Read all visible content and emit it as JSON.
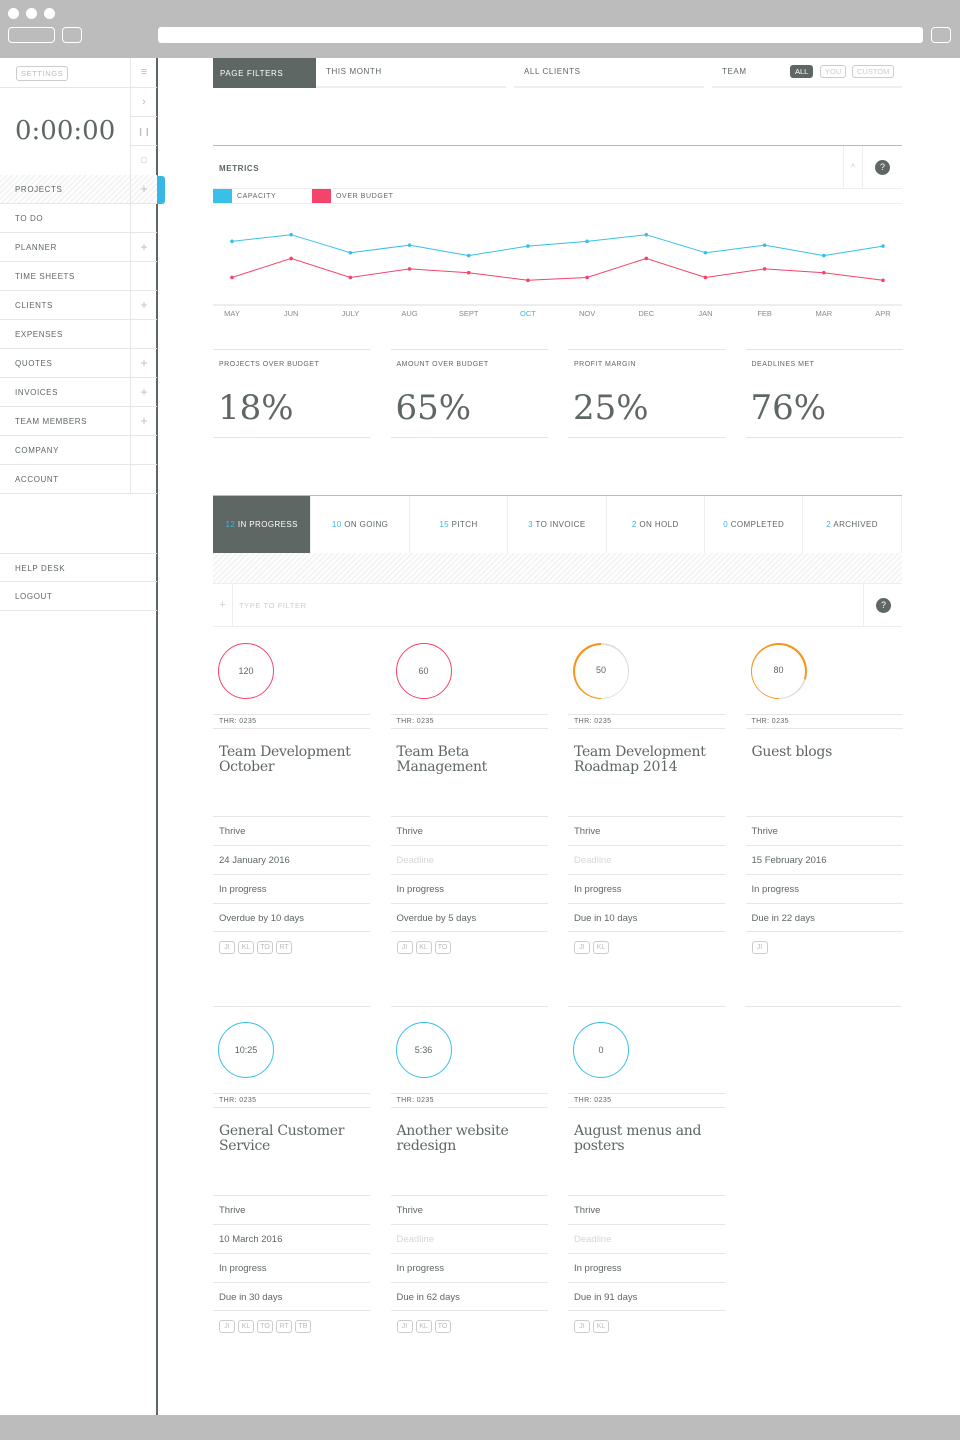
{
  "sidebar": {
    "settings": "SETTINGS",
    "timer": "0:00:00",
    "items": [
      {
        "label": "PROJECTS",
        "plus": true,
        "active": true
      },
      {
        "label": "TO DO",
        "plus": false
      },
      {
        "label": "PLANNER",
        "plus": true
      },
      {
        "label": "TIME SHEETS",
        "plus": false
      },
      {
        "label": "CLIENTS",
        "plus": true
      },
      {
        "label": "EXPENSES",
        "plus": false
      },
      {
        "label": "QUOTES",
        "plus": true
      },
      {
        "label": "INVOICES",
        "plus": true
      },
      {
        "label": "TEAM MEMBERS",
        "plus": true
      },
      {
        "label": "COMPANY",
        "plus": false
      },
      {
        "label": "ACCOUNT",
        "plus": false
      }
    ],
    "bottom_items": [
      {
        "label": "HELP DESK"
      },
      {
        "label": "LOGOUT"
      }
    ]
  },
  "filters": {
    "page_filters": "PAGE FILTERS",
    "period": "THIS MONTH",
    "clients": "ALL CLIENTS",
    "team": "TEAM",
    "team_options": [
      "ALL",
      "YOU",
      "CUSTOM"
    ],
    "team_selected": "ALL"
  },
  "metrics": {
    "title": "METRICS",
    "help": "?"
  },
  "chart_data": {
    "type": "line",
    "categories": [
      "MAY",
      "JUN",
      "JULY",
      "AUG",
      "SEPT",
      "OCT",
      "NOV",
      "DEC",
      "JAN",
      "FEB",
      "MAR",
      "APR"
    ],
    "highlight_category": "OCT",
    "ylim": [
      0,
      100
    ],
    "series": [
      {
        "name": "CAPACITY",
        "color": "#38c0e8",
        "values": [
          67,
          74,
          55,
          63,
          52,
          62,
          67,
          74,
          55,
          63,
          52,
          62
        ]
      },
      {
        "name": "OVER BUDGET",
        "color": "#f5436a",
        "values": [
          29,
          49,
          29,
          38,
          34,
          26,
          29,
          49,
          29,
          38,
          34,
          26
        ]
      }
    ]
  },
  "kpis": [
    {
      "label": "PROJECTS OVER BUDGET",
      "value": "18%"
    },
    {
      "label": "AMOUNT OVER BUDGET",
      "value": "65%"
    },
    {
      "label": "PROFIT MARGIN",
      "value": "25%"
    },
    {
      "label": "DEADLINES MET",
      "value": "76%"
    }
  ],
  "tabs": [
    {
      "count": "12",
      "label": "IN PROGRESS"
    },
    {
      "count": "10",
      "label": "ON GOING"
    },
    {
      "count": "15",
      "label": "PITCH"
    },
    {
      "count": "3",
      "label": "TO INVOICE"
    },
    {
      "count": "2",
      "label": "ON HOLD"
    },
    {
      "count": "0",
      "label": "COMPLETED"
    },
    {
      "count": "2",
      "label": "ARCHIVED"
    }
  ],
  "filter": {
    "placeholder": "TYPE TO FILTER",
    "help": "?"
  },
  "colors": {
    "red": "#f5436a",
    "orange": "#f7941d",
    "blue": "#38c0e8",
    "dark": "#5e6763"
  },
  "projects": [
    {
      "ring": "120",
      "ring_color": "red",
      "fill": 1,
      "code": "THR: 0235",
      "title": "Team Development October",
      "client": "Thrive",
      "deadline": "24 January 2016",
      "status": "In progress",
      "due": "Overdue by 10 days",
      "team": [
        "JI",
        "KL",
        "TO",
        "RT"
      ]
    },
    {
      "ring": "60",
      "ring_color": "red",
      "fill": 1,
      "code": "THR: 0235",
      "title": "Team Beta Management",
      "client": "Thrive",
      "deadline": "Deadline",
      "deadline_placeholder": true,
      "status": "In progress",
      "due": "Overdue by 5 days",
      "team": [
        "JI",
        "KL",
        "TO"
      ]
    },
    {
      "ring": "50",
      "ring_color": "orange",
      "fill": 0.5,
      "code": "THR: 0235",
      "title": "Team Development Roadmap 2014",
      "client": "Thrive",
      "deadline": "Deadline",
      "deadline_placeholder": true,
      "status": "In progress",
      "due": "Due in 10 days",
      "team": [
        "JI",
        "KL"
      ]
    },
    {
      "ring": "80",
      "ring_color": "orange",
      "fill": 0.8,
      "code": "THR: 0235",
      "title": "Guest blogs",
      "client": "Thrive",
      "deadline": "15 February 2016",
      "status": "In progress",
      "due": "Due in 22 days",
      "team": [
        "JI"
      ]
    },
    {
      "ring": "10:25",
      "ring_color": "blue",
      "fill": 1,
      "code": "THR: 0235",
      "title": "General Customer Service",
      "client": "Thrive",
      "deadline": "10 March 2016",
      "status": "In progress",
      "due": "Due in 30 days",
      "team": [
        "JI",
        "KL",
        "TO",
        "RT",
        "TB"
      ]
    },
    {
      "ring": "5:36",
      "ring_color": "blue",
      "fill": 1,
      "code": "THR: 0235",
      "title": "Another website redesign",
      "client": "Thrive",
      "deadline": "Deadline",
      "deadline_placeholder": true,
      "status": "In progress",
      "due": "Due in 62 days",
      "team": [
        "JI",
        "KL",
        "TO"
      ]
    },
    {
      "ring": "0",
      "ring_color": "blue",
      "fill": 1,
      "code": "THR: 0235",
      "title": "August menus and posters",
      "client": "Thrive",
      "deadline": "Deadline",
      "deadline_placeholder": true,
      "status": "In progress",
      "due": "Due in 91 days",
      "team": [
        "JI",
        "KL"
      ]
    }
  ]
}
